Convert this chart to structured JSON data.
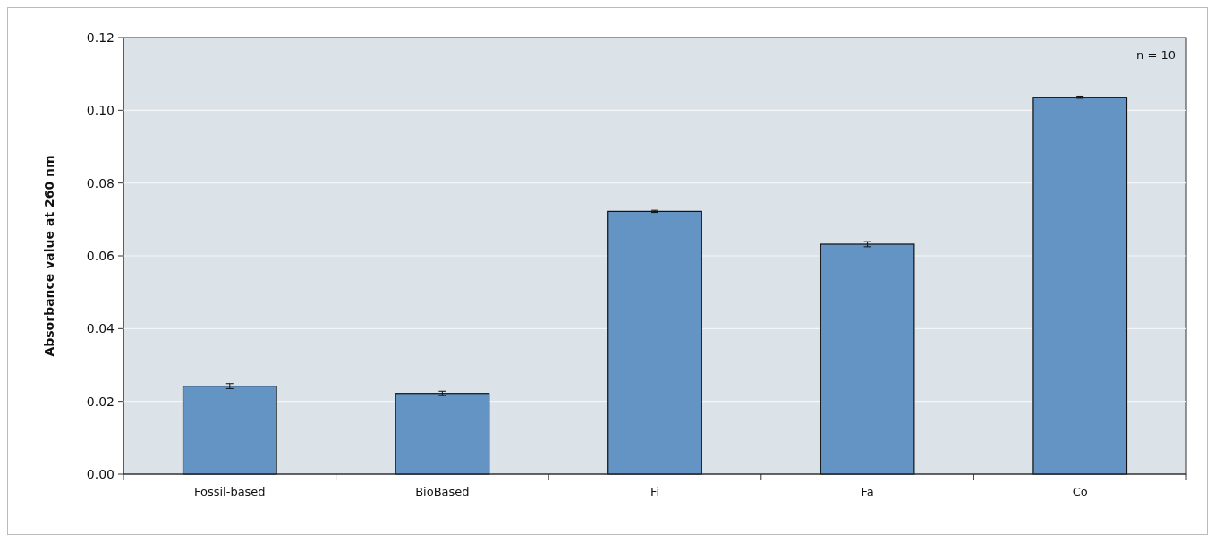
{
  "chart_data": {
    "type": "bar",
    "ylabel": "Absorbance value at 260 nm",
    "categories": [
      "Fossil-based",
      "BioBased",
      "Fi",
      "Fa",
      "Co"
    ],
    "values": [
      0.0242,
      0.0222,
      0.0722,
      0.0632,
      0.1036
    ],
    "errors": [
      0.0007,
      0.0006,
      0.0003,
      0.0007,
      0.0003
    ],
    "color": "#6394c4",
    "ylim": [
      0,
      0.12
    ],
    "yticks": [
      {
        "value": 0,
        "label": "0.00"
      },
      {
        "value": 0.02,
        "label": "0.02"
      },
      {
        "value": 0.04,
        "label": "0.04"
      },
      {
        "value": 0.06,
        "label": "0.06"
      },
      {
        "value": 0.08,
        "label": "0.08"
      },
      {
        "value": 0.1,
        "label": "0.10"
      },
      {
        "value": 0.12,
        "label": "0.12"
      }
    ],
    "grid": "y",
    "annotations": [
      "n = 10"
    ]
  }
}
